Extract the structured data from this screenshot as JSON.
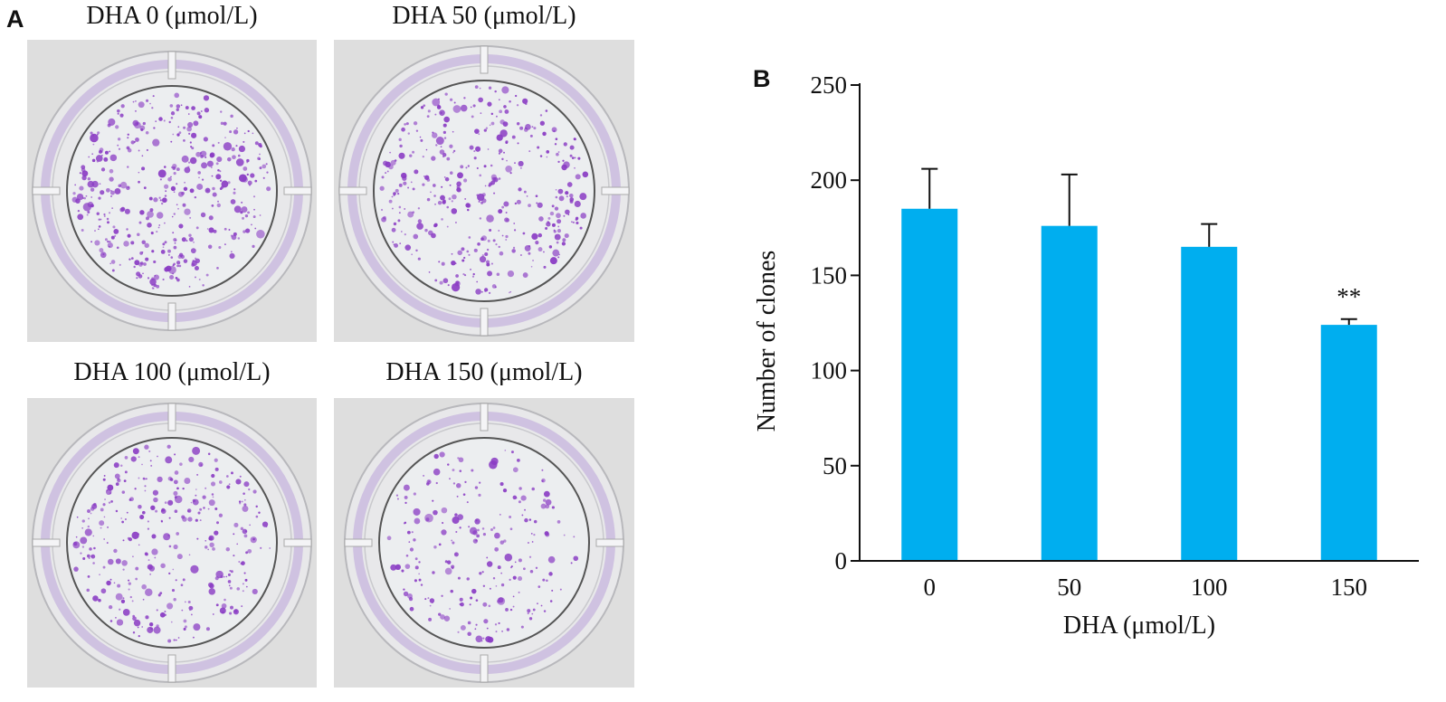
{
  "panel_a": {
    "letter": "A",
    "plates": [
      {
        "label": "DHA 0 (μmol/L)",
        "colonies": 420,
        "seed": 11
      },
      {
        "label": "DHA 50 (μmol/L)",
        "colonies": 400,
        "seed": 23
      },
      {
        "label": "DHA 100 (μmol/L)",
        "colonies": 330,
        "seed": 37
      },
      {
        "label": "DHA 150 (μmol/L)",
        "colonies": 230,
        "seed": 53
      }
    ],
    "colors": {
      "colony": "#8a3cc4",
      "plate_bg": "#dedede",
      "well": "#eceef0",
      "stain": "#b9a2d8"
    }
  },
  "panel_b": {
    "letter": "B"
  },
  "chart_data": {
    "type": "bar",
    "categories": [
      "0",
      "50",
      "100",
      "150"
    ],
    "values": [
      185,
      176,
      165,
      124
    ],
    "errors": [
      21,
      27,
      12,
      3
    ],
    "annotations": [
      "",
      "",
      "",
      "**"
    ],
    "xlabel": "DHA (μmol/L)",
    "ylabel": "Number of clones",
    "ylim": [
      0,
      250
    ],
    "yticks": [
      0,
      50,
      100,
      150,
      200,
      250
    ],
    "bar_color": "#00aeef",
    "grid": false
  }
}
